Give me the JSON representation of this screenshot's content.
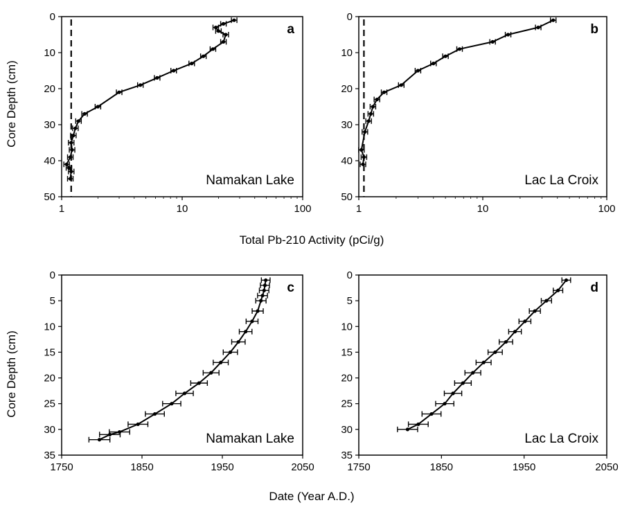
{
  "figure": {
    "ylabel_top": "Core Depth (cm)",
    "ylabel_bottom": "Core Depth (cm)",
    "xlabel_top": "Total Pb-210 Activity (pCi/g)",
    "xlabel_bottom": "Date (Year A.D.)"
  },
  "chart_data": [
    {
      "id": "a",
      "type": "line",
      "panel_label": "a",
      "annotation": "Namakan Lake",
      "xscale": "log",
      "xlim": [
        1,
        100
      ],
      "ylim": [
        0,
        50
      ],
      "y_inverted": true,
      "xticks": [
        "1",
        "10",
        "100"
      ],
      "yticks": [
        "0",
        "10",
        "20",
        "30",
        "40",
        "50"
      ],
      "reference_line": {
        "x": 1.2,
        "style": "dashed"
      },
      "series": [
        {
          "x": [
            27,
            22,
            19,
            20,
            23,
            22,
            18,
            15,
            12,
            8.5,
            6.2,
            4.5,
            3.0,
            2.0,
            1.55,
            1.38,
            1.3,
            1.25,
            1.2,
            1.22,
            1.18,
            1.1,
            1.15,
            1.2,
            1.18
          ],
          "y": [
            1,
            2,
            3,
            4,
            5,
            7,
            9,
            11,
            13,
            15,
            17,
            19,
            21,
            25,
            27,
            29,
            31,
            33,
            35,
            37,
            39,
            41,
            42,
            43,
            45
          ]
        }
      ]
    },
    {
      "id": "b",
      "type": "line",
      "panel_label": "b",
      "annotation": "Lac La Croix",
      "xscale": "log",
      "xlim": [
        1,
        100
      ],
      "ylim": [
        0,
        50
      ],
      "y_inverted": true,
      "xticks": [
        "1",
        "10",
        "100"
      ],
      "yticks": [
        "0",
        "10",
        "20",
        "30",
        "40",
        "50"
      ],
      "reference_line": {
        "x": 1.1,
        "style": "dashed"
      },
      "series": [
        {
          "x": [
            37,
            28,
            16,
            12,
            6.5,
            5.0,
            4.0,
            3.0,
            2.2,
            1.6,
            1.4,
            1.3,
            1.25,
            1.2,
            1.12,
            1.05,
            1.1,
            1.08
          ],
          "y": [
            1,
            3,
            5,
            7,
            9,
            11,
            13,
            15,
            19,
            21,
            23,
            25,
            27,
            29,
            32,
            37,
            39,
            41
          ]
        }
      ]
    },
    {
      "id": "c",
      "type": "line",
      "panel_label": "c",
      "annotation": "Namakan Lake",
      "xlim": [
        1750,
        2050
      ],
      "ylim": [
        0,
        35
      ],
      "y_inverted": true,
      "xticks": [
        "1750",
        "1850",
        "1950",
        "2050"
      ],
      "yticks": [
        "0",
        "5",
        "10",
        "15",
        "20",
        "25",
        "30",
        "35"
      ],
      "series": [
        {
          "x": [
            2004,
            2003,
            2002,
            2000,
            1998,
            1994,
            1987,
            1979,
            1970,
            1960,
            1948,
            1936,
            1921,
            1903,
            1887,
            1866,
            1845,
            1822,
            1810,
            1797
          ],
          "y": [
            1,
            2,
            3,
            4,
            5,
            7,
            9,
            11,
            13,
            15,
            17,
            19,
            21,
            23,
            25,
            27,
            29,
            30.5,
            31,
            32
          ]
        }
      ]
    },
    {
      "id": "d",
      "type": "line",
      "panel_label": "d",
      "annotation": "Lac La Croix",
      "xlim": [
        1750,
        2050
      ],
      "ylim": [
        0,
        35
      ],
      "y_inverted": true,
      "xticks": [
        "1750",
        "1850",
        "1950",
        "2050"
      ],
      "yticks": [
        "0",
        "5",
        "10",
        "15",
        "20",
        "25",
        "30",
        "35"
      ],
      "series": [
        {
          "x": [
            2001,
            1991,
            1977,
            1963,
            1951,
            1939,
            1928,
            1915,
            1901,
            1888,
            1876,
            1864,
            1854,
            1838,
            1822,
            1809
          ],
          "y": [
            1,
            3,
            5,
            7,
            9,
            11,
            13,
            15,
            17,
            19,
            21,
            23,
            25,
            27,
            29,
            30
          ]
        }
      ]
    }
  ]
}
